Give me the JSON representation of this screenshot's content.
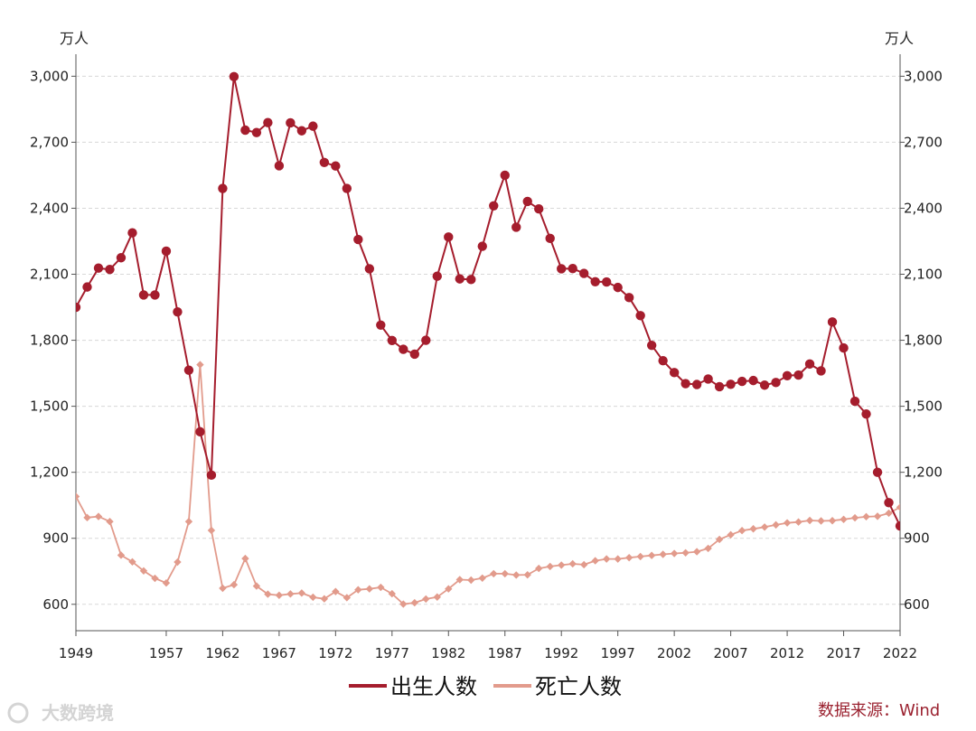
{
  "chart_data": {
    "type": "line",
    "unit_left": "万人",
    "unit_right": "万人",
    "ylim": [
      480,
      3100
    ],
    "yticks": [
      600,
      900,
      1200,
      1500,
      1800,
      2100,
      2400,
      2700,
      3000
    ],
    "ytick_labels": [
      "600",
      "900",
      "1,200",
      "1,500",
      "1,800",
      "2,100",
      "2,400",
      "2,700",
      "3,000"
    ],
    "xlim": [
      1949,
      2022
    ],
    "xticks": [
      1949,
      1957,
      1962,
      1967,
      1972,
      1977,
      1982,
      1987,
      1992,
      1997,
      2002,
      2007,
      2012,
      2017,
      2022
    ],
    "grid": "horizontal-dashed",
    "legend_position": "bottom",
    "source": "数据来源：Wind",
    "watermark": "大数跨境",
    "colors": {
      "births": "#a51d2d",
      "deaths": "#e29b8c"
    },
    "x": [
      1949,
      1950,
      1951,
      1952,
      1953,
      1954,
      1955,
      1956,
      1957,
      1958,
      1959,
      1960,
      1961,
      1962,
      1963,
      1964,
      1965,
      1966,
      1967,
      1968,
      1969,
      1970,
      1971,
      1972,
      1973,
      1974,
      1975,
      1976,
      1977,
      1978,
      1979,
      1980,
      1981,
      1982,
      1983,
      1984,
      1985,
      1986,
      1987,
      1988,
      1989,
      1990,
      1991,
      1992,
      1993,
      1994,
      1995,
      1996,
      1997,
      1998,
      1999,
      2000,
      2001,
      2002,
      2003,
      2004,
      2005,
      2006,
      2007,
      2008,
      2009,
      2010,
      2011,
      2012,
      2013,
      2014,
      2015,
      2016,
      2017,
      2018,
      2019,
      2020,
      2021,
      2022
    ],
    "series": [
      {
        "name": "出生人数",
        "values": [
          1950,
          2042,
          2128,
          2122,
          2175,
          2288,
          2006,
          2006,
          2205,
          1929,
          1664,
          1384,
          1187,
          2490,
          2998,
          2755,
          2744,
          2789,
          2593,
          2788,
          2752,
          2773,
          2608,
          2592,
          2490,
          2258,
          2125,
          1869,
          1799,
          1759,
          1737,
          1800,
          2091,
          2269,
          2079,
          2076,
          2227,
          2411,
          2550,
          2314,
          2431,
          2397,
          2263,
          2125,
          2126,
          2104,
          2066,
          2065,
          2040,
          1994,
          1912,
          1777,
          1707,
          1653,
          1603,
          1599,
          1624,
          1589,
          1600,
          1613,
          1617,
          1596,
          1608,
          1639,
          1642,
          1692,
          1661,
          1883,
          1765,
          1523,
          1465,
          1200,
          1062,
          956
        ]
      },
      {
        "name": "死亡人数",
        "values": [
          1090,
          994,
          999,
          976,
          823,
          793,
          752,
          718,
          697,
          792,
          976,
          1689,
          936,
          673,
          689,
          808,
          683,
          646,
          641,
          647,
          651,
          632,
          625,
          658,
          630,
          666,
          670,
          677,
          648,
          601,
          607,
          624,
          633,
          670,
          712,
          710,
          719,
          739,
          739,
          733,
          734,
          763,
          772,
          778,
          784,
          780,
          798,
          806,
          806,
          812,
          817,
          822,
          827,
          831,
          834,
          839,
          854,
          895,
          916,
          935,
          943,
          951,
          961,
          970,
          974,
          981,
          979,
          980,
          986,
          993,
          998,
          1000,
          1014,
          1041
        ]
      }
    ]
  }
}
